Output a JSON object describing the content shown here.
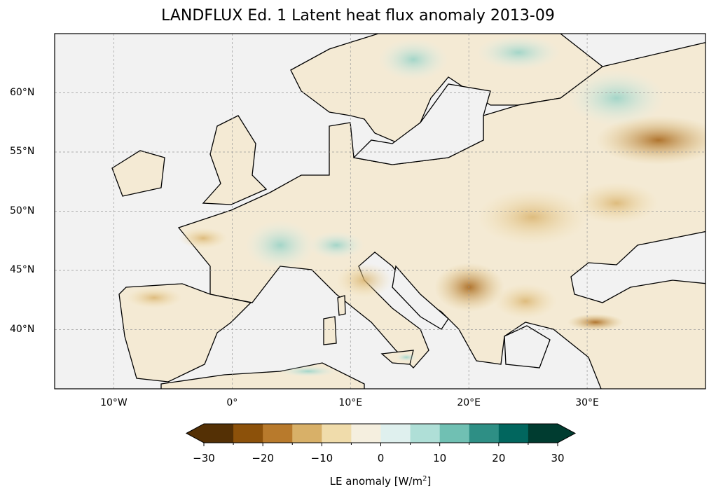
{
  "title": "LANDFLUX Ed. 1 Latent heat flux anomaly 2013-09",
  "map": {
    "extent_lon": [
      -15,
      40
    ],
    "extent_lat": [
      35,
      65
    ],
    "lat_ticks": [
      {
        "value": 60,
        "label": "60°N"
      },
      {
        "value": 55,
        "label": "55°N"
      },
      {
        "value": 50,
        "label": "50°N"
      },
      {
        "value": 45,
        "label": "45°N"
      },
      {
        "value": 40,
        "label": "40°N"
      }
    ],
    "lon_ticks": [
      {
        "value": -10,
        "label": "10°W"
      },
      {
        "value": 0,
        "label": "0°"
      },
      {
        "value": 10,
        "label": "10°E"
      },
      {
        "value": 20,
        "label": "20°E"
      },
      {
        "value": 30,
        "label": "30°E"
      }
    ],
    "ocean_color": "#f2f2f2",
    "coastline_color": "#000000"
  },
  "colorbar": {
    "label_prefix": "LE anomaly [W/m",
    "label_sup": "2",
    "label_suffix": "]",
    "levels": [
      -30,
      -25,
      -20,
      -15,
      -10,
      -5,
      0,
      5,
      10,
      15,
      20,
      25,
      30
    ],
    "tick_labels": [
      "−30",
      "−20",
      "−10",
      "0",
      "10",
      "20",
      "30"
    ],
    "tick_values": [
      -30,
      -20,
      -10,
      0,
      10,
      20,
      30
    ],
    "colors": [
      "#543005",
      "#8c510a",
      "#b87a2c",
      "#d8b068",
      "#f0dcab",
      "#f5efdf",
      "#dff0ee",
      "#afdfd7",
      "#70c0b3",
      "#2e8f85",
      "#01665e",
      "#003c30"
    ],
    "extend": "both"
  }
}
